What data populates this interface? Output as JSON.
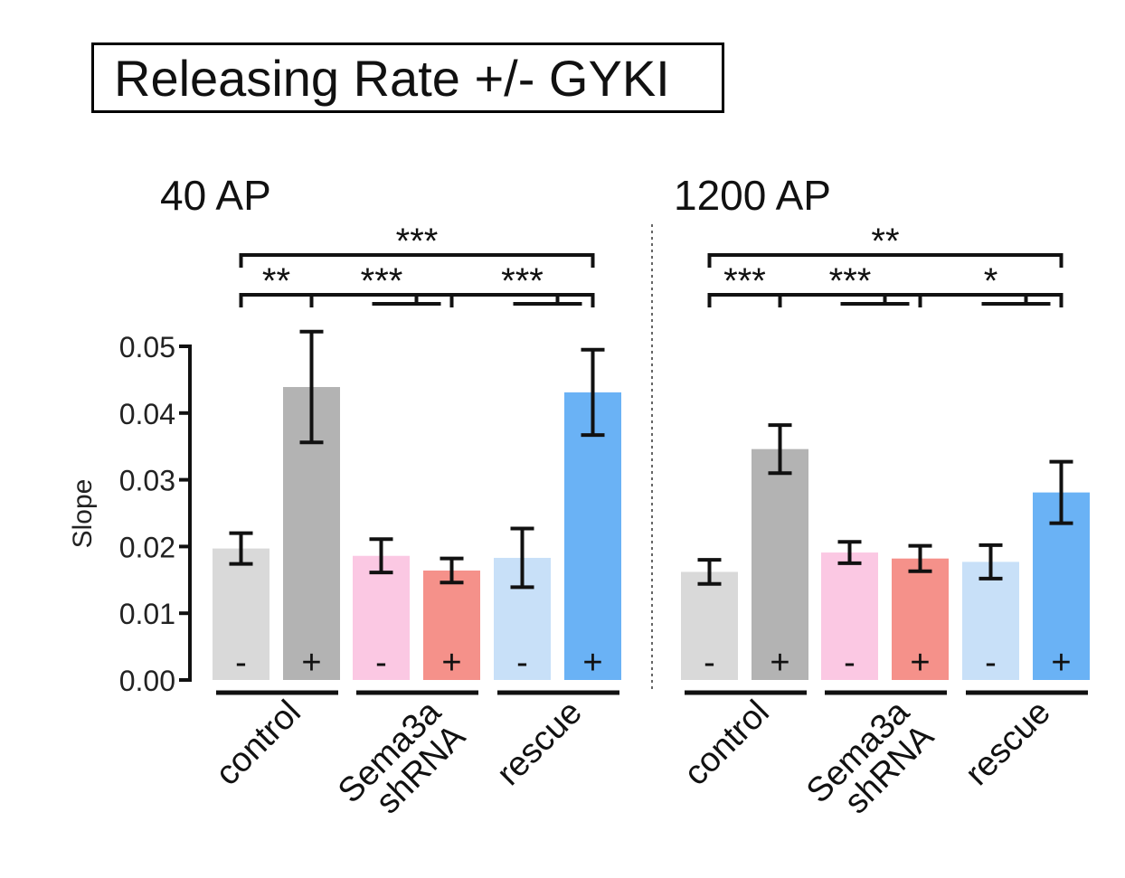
{
  "title": "Releasing Rate +/- GYKI",
  "chart_data": [
    {
      "type": "bar",
      "panel_title": "40 AP",
      "ylabel": "Slope",
      "ylim": [
        0,
        0.05
      ],
      "yticks": [
        "0.00",
        "0.01",
        "0.02",
        "0.03",
        "0.04",
        "0.05"
      ],
      "groups": [
        {
          "name": "control",
          "label_lines": [
            "control"
          ]
        },
        {
          "name": "Sema3a shRNA",
          "label_lines": [
            "Sema3a",
            "shRNA"
          ]
        },
        {
          "name": "rescue",
          "label_lines": [
            "rescue"
          ]
        }
      ],
      "bars": [
        {
          "group": "control",
          "gyki": "-",
          "value": 0.0197,
          "error": 0.0023,
          "color": "#d9d9d9"
        },
        {
          "group": "control",
          "gyki": "+",
          "value": 0.0439,
          "error": 0.0083,
          "color": "#b3b3b3"
        },
        {
          "group": "Sema3a shRNA",
          "gyki": "-",
          "value": 0.0186,
          "error": 0.0025,
          "color": "#fbc8e3"
        },
        {
          "group": "Sema3a shRNA",
          "gyki": "+",
          "value": 0.0164,
          "error": 0.0018,
          "color": "#f5918a"
        },
        {
          "group": "rescue",
          "gyki": "-",
          "value": 0.0183,
          "error": 0.0044,
          "color": "#c8e0f8"
        },
        {
          "group": "rescue",
          "gyki": "+",
          "value": 0.0431,
          "error": 0.0064,
          "color": "#6ab2f5"
        }
      ],
      "significance": [
        {
          "label": "***",
          "from": 0,
          "to": 5,
          "level": 2,
          "kind": "simple"
        },
        {
          "label": "**",
          "from": 0,
          "to": 1,
          "level": 1,
          "kind": "simple"
        },
        {
          "label": "***",
          "from": 1,
          "to": 3,
          "level": 1,
          "kind": "fork",
          "to_left": 2
        },
        {
          "label": "***",
          "from": 3,
          "to": 5,
          "level": 1,
          "kind": "fork",
          "to_left": 4
        }
      ]
    },
    {
      "type": "bar",
      "panel_title": "1200 AP",
      "ylabel": "",
      "ylim": [
        0,
        0.05
      ],
      "groups": [
        {
          "name": "control",
          "label_lines": [
            "control"
          ]
        },
        {
          "name": "Sema3a shRNA",
          "label_lines": [
            "Sema3a",
            "shRNA"
          ]
        },
        {
          "name": "rescue",
          "label_lines": [
            "rescue"
          ]
        }
      ],
      "bars": [
        {
          "group": "control",
          "gyki": "-",
          "value": 0.0162,
          "error": 0.0018,
          "color": "#d9d9d9"
        },
        {
          "group": "control",
          "gyki": "+",
          "value": 0.0346,
          "error": 0.0036,
          "color": "#b3b3b3"
        },
        {
          "group": "Sema3a shRNA",
          "gyki": "-",
          "value": 0.0191,
          "error": 0.0016,
          "color": "#fbc8e3"
        },
        {
          "group": "Sema3a shRNA",
          "gyki": "+",
          "value": 0.0182,
          "error": 0.0019,
          "color": "#f5918a"
        },
        {
          "group": "rescue",
          "gyki": "-",
          "value": 0.0177,
          "error": 0.0025,
          "color": "#c8e0f8"
        },
        {
          "group": "rescue",
          "gyki": "+",
          "value": 0.0281,
          "error": 0.0046,
          "color": "#6ab2f5"
        }
      ],
      "significance": [
        {
          "label": "**",
          "from": 0,
          "to": 5,
          "level": 2,
          "kind": "simple"
        },
        {
          "label": "***",
          "from": 0,
          "to": 1,
          "level": 1,
          "kind": "simple"
        },
        {
          "label": "***",
          "from": 1,
          "to": 3,
          "level": 1,
          "kind": "fork",
          "to_left": 2
        },
        {
          "label": "*",
          "from": 3,
          "to": 5,
          "level": 1,
          "kind": "fork",
          "to_left": 4
        }
      ]
    }
  ]
}
